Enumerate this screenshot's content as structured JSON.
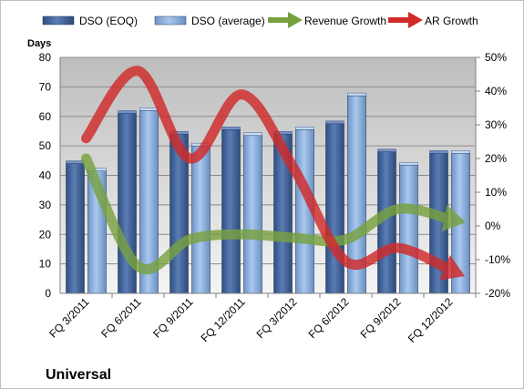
{
  "chart_data": {
    "type": "bar",
    "title": "Universal",
    "left_axis_label": "Days",
    "categories": [
      "FQ 3/2011",
      "FQ 6/2011",
      "FQ 9/2011",
      "FQ 12/2011",
      "FQ 3/2012",
      "FQ 6/2012",
      "FQ 9/2012",
      "FQ 12/2012"
    ],
    "series": [
      {
        "name": "DSO (EOQ)",
        "type": "bar",
        "axis": "left",
        "values": [
          44,
          61,
          54,
          55.5,
          54,
          57.5,
          48,
          47.5
        ],
        "color": "#4f6fa8"
      },
      {
        "name": "DSO (average)",
        "type": "bar",
        "axis": "left",
        "values": [
          41.5,
          62,
          50,
          53.5,
          55.5,
          67,
          43.5,
          47.5
        ],
        "color": "#8fb4e3"
      },
      {
        "name": "Revenue Growth",
        "type": "line",
        "axis": "right",
        "values": [
          20,
          -12,
          -4,
          -2.5,
          -3.5,
          -4,
          5,
          2
        ],
        "color": "#77a13f"
      },
      {
        "name": "AR Growth",
        "type": "line",
        "axis": "right",
        "values": [
          26,
          46,
          20,
          39,
          17,
          -10.5,
          -6.5,
          -13
        ],
        "color": "#d12a2a"
      }
    ],
    "left_axis": {
      "min": 0,
      "max": 80,
      "ticks": [
        0,
        10,
        20,
        30,
        40,
        50,
        60,
        70,
        80
      ]
    },
    "right_axis": {
      "min": -20,
      "max": 50,
      "ticks": [
        "-20%",
        "-10%",
        "0%",
        "10%",
        "20%",
        "30%",
        "40%",
        "50%"
      ]
    },
    "grid": true,
    "legend_position": "top"
  }
}
